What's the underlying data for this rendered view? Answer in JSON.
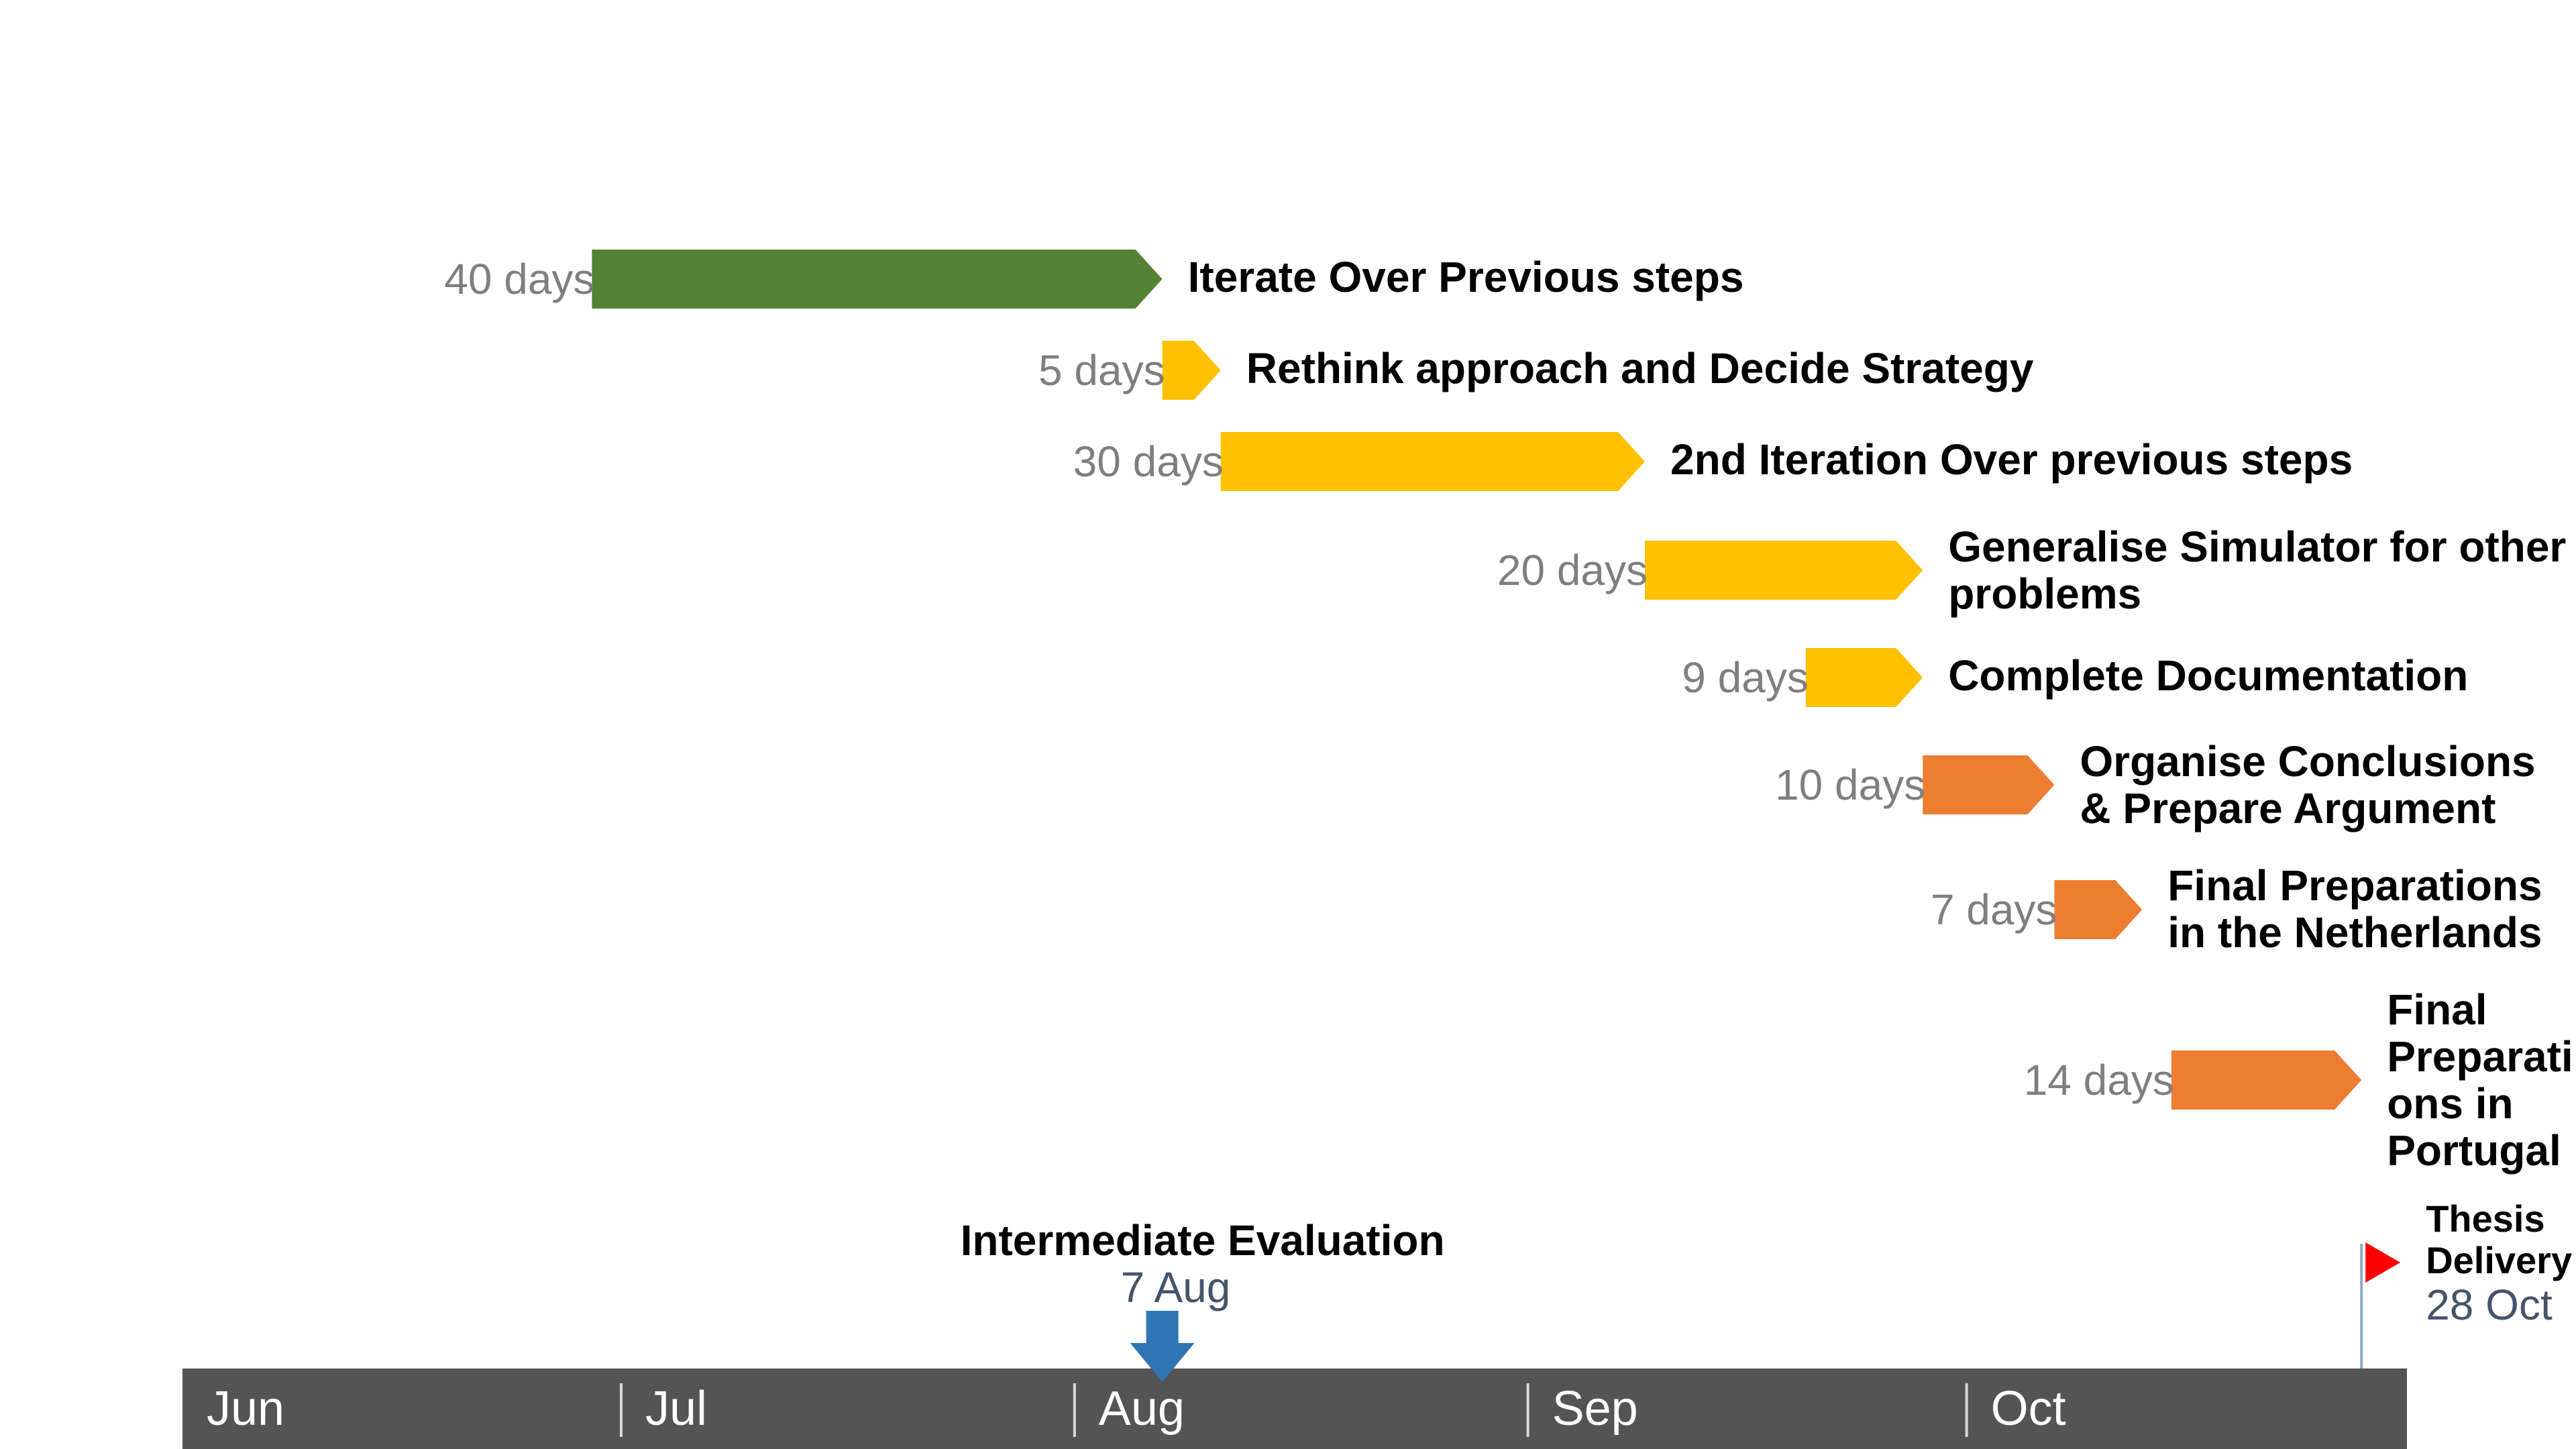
{
  "chart_data": {
    "type": "gantt",
    "timeline": {
      "months": [
        "Jun",
        "Jul",
        "Aug",
        "Sep",
        "Oct"
      ],
      "start": "2018-06-01",
      "end": "2018-10-31",
      "color": "#545454"
    },
    "tasks": [
      {
        "label": "Iterate Over Previous steps",
        "duration": "40 days",
        "start": "2018-06-29",
        "end": "2018-08-07",
        "color": "#548235"
      },
      {
        "label": "Rethink approach and Decide Strategy",
        "duration": "5 days",
        "start": "2018-08-07",
        "end": "2018-08-11",
        "color": "#ffc000"
      },
      {
        "label": "2nd Iteration Over previous steps",
        "duration": "30 days",
        "start": "2018-08-11",
        "end": "2018-09-09",
        "color": "#ffc000"
      },
      {
        "label": "Generalise Simulator for other\nproblems",
        "duration": "20 days",
        "start": "2018-09-09",
        "end": "2018-09-28",
        "color": "#ffc000"
      },
      {
        "label": "Complete Documentation",
        "duration": "9 days",
        "start": "2018-09-20",
        "end": "2018-09-28",
        "color": "#ffc000"
      },
      {
        "label": "Organise Conclusions\n& Prepare Argument",
        "duration": "10 days",
        "start": "2018-09-28",
        "end": "2018-10-07",
        "color": "#ed7d31"
      },
      {
        "label": "Final Preparations\nin the Netherlands",
        "duration": "7 days",
        "start": "2018-10-07",
        "end": "2018-10-13",
        "color": "#ed7d31"
      },
      {
        "label": "Final\nPreparati\nons in\nPortugal",
        "duration": "14 days",
        "start": "2018-10-15",
        "end": "2018-10-28",
        "color": "#ed7d31"
      }
    ],
    "milestones": [
      {
        "title": "Intermediate Evaluation",
        "date": "7 Aug",
        "date_value": "2018-08-07",
        "marker": "down-arrow",
        "color": "#2e75b6"
      },
      {
        "title": "Thesis\nDelivery",
        "date": "28 Oct",
        "date_value": "2018-10-28",
        "marker": "flag",
        "color": "#ff0000"
      }
    ]
  }
}
